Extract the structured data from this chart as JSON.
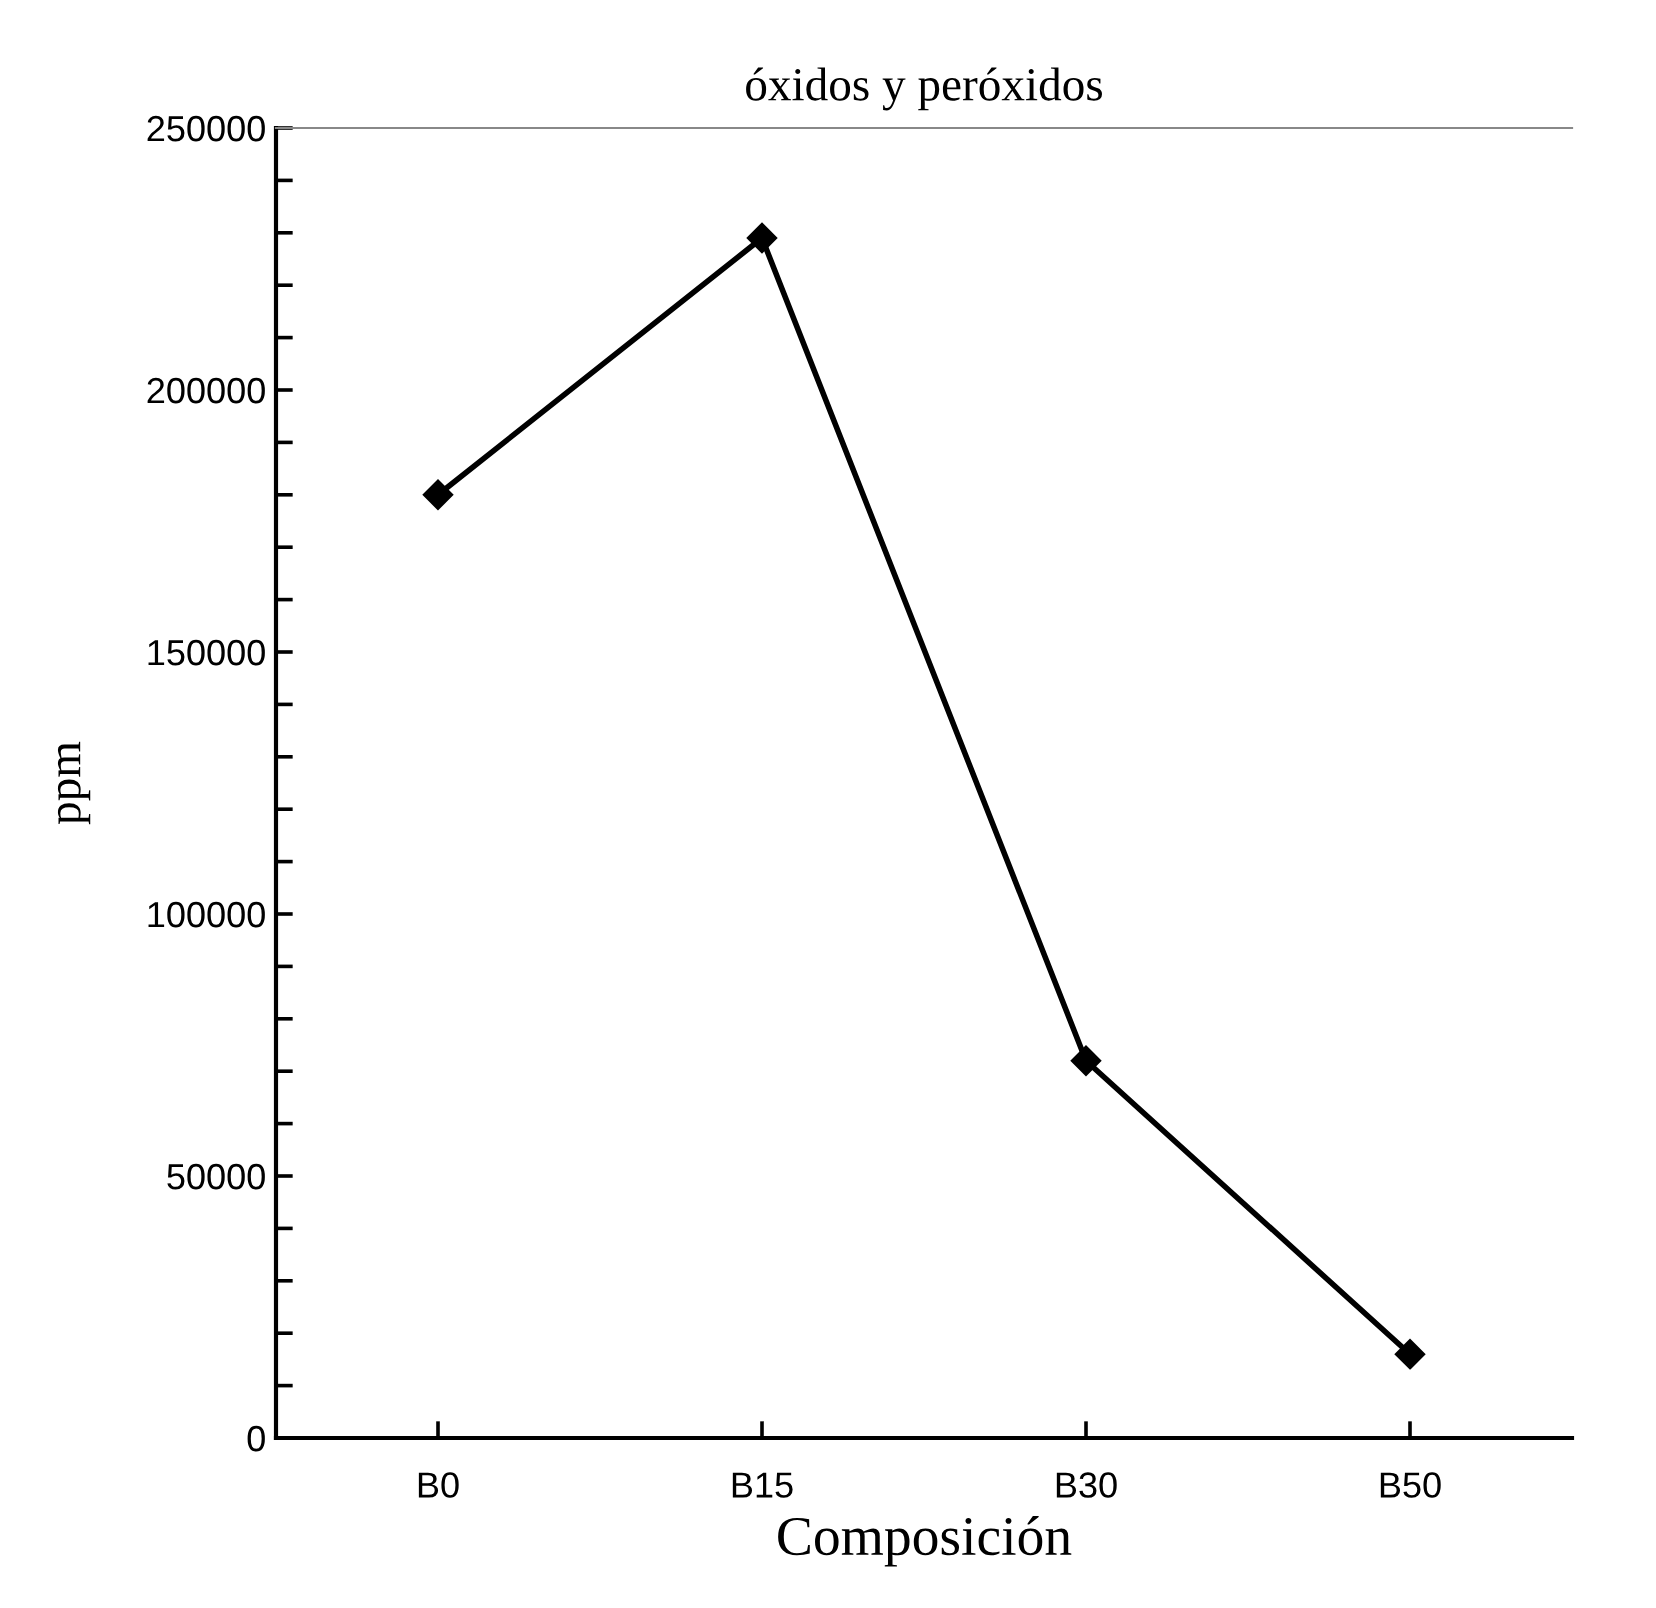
{
  "chart_data": {
    "type": "line",
    "title": "óxidos y peróxidos",
    "xlabel": "Composición",
    "ylabel": "ppm",
    "categories": [
      "B0",
      "B15",
      "B30",
      "B50"
    ],
    "series": [
      {
        "color": "#000000",
        "values": [
          180000,
          229000,
          72000,
          16000
        ]
      }
    ],
    "ylim": [
      0,
      250000
    ],
    "yticks": [
      0,
      {
        "value": 10000,
        "label": null
      },
      {
        "value": 20000,
        "label": null
      },
      {
        "value": 30000,
        "label": null
      },
      {
        "value": 40000,
        "label": null
      },
      50000,
      {
        "value": 60000,
        "label": null
      },
      {
        "value": 70000,
        "label": null
      },
      {
        "value": 80000,
        "label": null
      },
      {
        "value": 90000,
        "label": null
      },
      100000,
      {
        "value": 110000,
        "label": null
      },
      {
        "value": 120000,
        "label": null
      },
      {
        "value": 130000,
        "label": null
      },
      {
        "value": 140000,
        "label": null
      },
      150000,
      {
        "value": 160000,
        "label": null
      },
      {
        "value": 170000,
        "label": null
      },
      {
        "value": 180000,
        "label": null
      },
      {
        "value": 190000,
        "label": null
      },
      200000,
      {
        "value": 210000,
        "label": null
      },
      {
        "value": 220000,
        "label": null
      },
      {
        "value": 230000,
        "label": null
      },
      {
        "value": 240000,
        "label": null
      },
      250000
    ],
    "grid": false,
    "legend": false,
    "marker": "diamond",
    "line_style": "solid"
  }
}
